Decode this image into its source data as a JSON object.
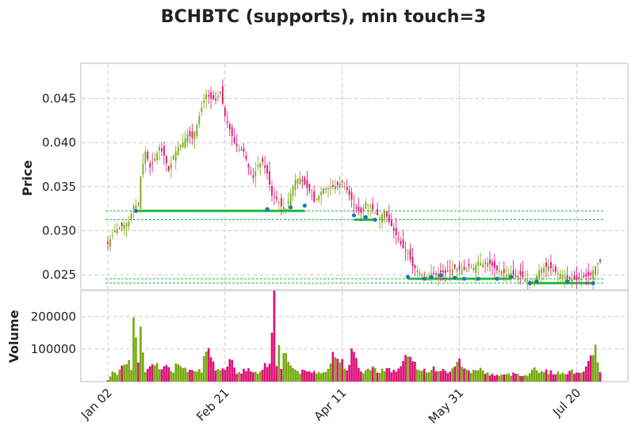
{
  "chart_data": {
    "type": "candlestick",
    "title": "BCHBTC (supports), min touch=3",
    "x_tick_labels": [
      "Jan 02",
      "Feb 21",
      "Apr 11",
      "May 31",
      "Jul 20"
    ],
    "x_tick_index": [
      0,
      50,
      100,
      150,
      200
    ],
    "price_panel": {
      "ylabel": "Price",
      "ylim": [
        0.0233,
        0.049
      ],
      "yticks": [
        0.025,
        0.03,
        0.035,
        0.04,
        0.045
      ],
      "ytick_labels": [
        "0.025",
        "0.030",
        "0.035",
        "0.040",
        "0.045"
      ]
    },
    "volume_panel": {
      "ylabel": "Volume",
      "ylim": [
        0,
        280000
      ],
      "yticks": [
        100000,
        200000
      ],
      "ytick_labels": [
        "100000",
        "200000"
      ]
    },
    "grid": true,
    "colors": {
      "up": "#77aa11",
      "down": "#dd1177",
      "support": "#22bb44",
      "touch": "#1f77b4"
    },
    "close_anchors": [
      [
        0,
        0.0285
      ],
      [
        3,
        0.03
      ],
      [
        6,
        0.0305
      ],
      [
        9,
        0.031
      ],
      [
        11,
        0.0328
      ],
      [
        13,
        0.033
      ],
      [
        14,
        0.0362
      ],
      [
        16,
        0.039
      ],
      [
        18,
        0.0372
      ],
      [
        20,
        0.0382
      ],
      [
        22,
        0.0395
      ],
      [
        24,
        0.0385
      ],
      [
        26,
        0.0368
      ],
      [
        28,
        0.0385
      ],
      [
        30,
        0.0395
      ],
      [
        32,
        0.04
      ],
      [
        34,
        0.041
      ],
      [
        36,
        0.0405
      ],
      [
        38,
        0.042
      ],
      [
        40,
        0.044
      ],
      [
        42,
        0.0455
      ],
      [
        44,
        0.045
      ],
      [
        46,
        0.0448
      ],
      [
        48,
        0.0458
      ],
      [
        50,
        0.043
      ],
      [
        52,
        0.0415
      ],
      [
        54,
        0.04
      ],
      [
        56,
        0.0392
      ],
      [
        58,
        0.039
      ],
      [
        60,
        0.0372
      ],
      [
        62,
        0.036
      ],
      [
        64,
        0.0375
      ],
      [
        66,
        0.0378
      ],
      [
        68,
        0.0365
      ],
      [
        70,
        0.034
      ],
      [
        72,
        0.0336
      ],
      [
        74,
        0.0328
      ],
      [
        76,
        0.0325
      ],
      [
        78,
        0.0342
      ],
      [
        80,
        0.0358
      ],
      [
        82,
        0.036
      ],
      [
        84,
        0.0352
      ],
      [
        86,
        0.0345
      ],
      [
        88,
        0.0333
      ],
      [
        90,
        0.034
      ],
      [
        92,
        0.0348
      ],
      [
        94,
        0.0348
      ],
      [
        96,
        0.035
      ],
      [
        98,
        0.0352
      ],
      [
        100,
        0.0355
      ],
      [
        102,
        0.0346
      ],
      [
        104,
        0.0335
      ],
      [
        106,
        0.0325
      ],
      [
        108,
        0.032
      ],
      [
        110,
        0.0332
      ],
      [
        112,
        0.0328
      ],
      [
        114,
        0.032
      ],
      [
        116,
        0.0315
      ],
      [
        118,
        0.0322
      ],
      [
        120,
        0.031
      ],
      [
        122,
        0.03
      ],
      [
        124,
        0.029
      ],
      [
        126,
        0.028
      ],
      [
        128,
        0.0275
      ],
      [
        130,
        0.026
      ],
      [
        132,
        0.0255
      ],
      [
        134,
        0.025
      ],
      [
        136,
        0.0248
      ],
      [
        138,
        0.0252
      ],
      [
        140,
        0.025
      ],
      [
        142,
        0.0253
      ],
      [
        144,
        0.0252
      ],
      [
        146,
        0.0255
      ],
      [
        148,
        0.0258
      ],
      [
        150,
        0.0256
      ],
      [
        152,
        0.0255
      ],
      [
        154,
        0.026
      ],
      [
        156,
        0.0258
      ],
      [
        158,
        0.0265
      ],
      [
        160,
        0.0262
      ],
      [
        162,
        0.0264
      ],
      [
        164,
        0.026
      ],
      [
        166,
        0.0255
      ],
      [
        168,
        0.0254
      ],
      [
        170,
        0.025
      ],
      [
        172,
        0.0252
      ],
      [
        174,
        0.0248
      ],
      [
        176,
        0.025
      ],
      [
        178,
        0.0245
      ],
      [
        180,
        0.0243
      ],
      [
        182,
        0.0243
      ],
      [
        184,
        0.0255
      ],
      [
        186,
        0.0258
      ],
      [
        188,
        0.026
      ],
      [
        190,
        0.0255
      ],
      [
        192,
        0.0252
      ],
      [
        194,
        0.025
      ],
      [
        196,
        0.0246
      ],
      [
        198,
        0.0245
      ],
      [
        200,
        0.0244
      ],
      [
        202,
        0.0246
      ],
      [
        204,
        0.0248
      ],
      [
        206,
        0.025
      ],
      [
        208,
        0.026
      ],
      [
        210,
        0.0265
      ]
    ],
    "volume_anchors": [
      [
        0,
        5000
      ],
      [
        2,
        35000
      ],
      [
        4,
        20000
      ],
      [
        6,
        40000
      ],
      [
        8,
        55000
      ],
      [
        9,
        80000
      ],
      [
        10,
        45000
      ],
      [
        11,
        200000
      ],
      [
        12,
        120000
      ],
      [
        13,
        60000
      ],
      [
        14,
        155000
      ],
      [
        16,
        30000
      ],
      [
        18,
        40000
      ],
      [
        20,
        55000
      ],
      [
        24,
        45000
      ],
      [
        28,
        35000
      ],
      [
        30,
        60000
      ],
      [
        34,
        40000
      ],
      [
        38,
        40000
      ],
      [
        40,
        35000
      ],
      [
        41,
        65000
      ],
      [
        43,
        90000
      ],
      [
        46,
        30000
      ],
      [
        50,
        40000
      ],
      [
        52,
        80000
      ],
      [
        55,
        30000
      ],
      [
        60,
        35000
      ],
      [
        65,
        30000
      ],
      [
        67,
        50000
      ],
      [
        69,
        60000
      ],
      [
        70,
        185000
      ],
      [
        71,
        280000
      ],
      [
        72,
        60000
      ],
      [
        73,
        100000
      ],
      [
        74,
        40000
      ],
      [
        75,
        100000
      ],
      [
        76,
        95000
      ],
      [
        77,
        60000
      ],
      [
        79,
        40000
      ],
      [
        82,
        30000
      ],
      [
        86,
        30000
      ],
      [
        90,
        30000
      ],
      [
        94,
        40000
      ],
      [
        96,
        80000
      ],
      [
        99,
        70000
      ],
      [
        102,
        45000
      ],
      [
        104,
        90000
      ],
      [
        108,
        30000
      ],
      [
        112,
        40000
      ],
      [
        116,
        35000
      ],
      [
        118,
        40000
      ],
      [
        120,
        35000
      ],
      [
        124,
        35000
      ],
      [
        126,
        70000
      ],
      [
        128,
        75000
      ],
      [
        132,
        40000
      ],
      [
        136,
        35000
      ],
      [
        140,
        40000
      ],
      [
        144,
        30000
      ],
      [
        148,
        40000
      ],
      [
        150,
        65000
      ],
      [
        154,
        30000
      ],
      [
        158,
        40000
      ],
      [
        162,
        25000
      ],
      [
        166,
        20000
      ],
      [
        170,
        20000
      ],
      [
        174,
        25000
      ],
      [
        178,
        20000
      ],
      [
        180,
        25000
      ],
      [
        182,
        40000
      ],
      [
        184,
        35000
      ],
      [
        188,
        30000
      ],
      [
        192,
        25000
      ],
      [
        196,
        30000
      ],
      [
        200,
        30000
      ],
      [
        203,
        35000
      ],
      [
        205,
        55000
      ],
      [
        207,
        75000
      ],
      [
        208,
        100000
      ],
      [
        210,
        35000
      ]
    ],
    "supports": [
      {
        "price": 0.03225,
        "x_start": 12,
        "x_end": 84
      },
      {
        "price": 0.03125,
        "x_start": 105,
        "x_end": 114
      },
      {
        "price": 0.02455,
        "x_start": 128,
        "x_end": 172
      },
      {
        "price": 0.02405,
        "x_start": 180,
        "x_end": 207
      }
    ],
    "touches": [
      [
        12,
        0.03225
      ],
      [
        68,
        0.03245
      ],
      [
        78,
        0.03265
      ],
      [
        84,
        0.03285
      ],
      [
        105,
        0.03175
      ],
      [
        110,
        0.03155
      ],
      [
        114,
        0.03125
      ],
      [
        128,
        0.02475
      ],
      [
        135,
        0.02455
      ],
      [
        138,
        0.02475
      ],
      [
        142,
        0.02495
      ],
      [
        148,
        0.02465
      ],
      [
        152,
        0.02455
      ],
      [
        158,
        0.02455
      ],
      [
        166,
        0.02455
      ],
      [
        172,
        0.02475
      ],
      [
        180,
        0.02405
      ],
      [
        183,
        0.02425
      ],
      [
        196,
        0.02425
      ],
      [
        207,
        0.02405
      ]
    ]
  }
}
